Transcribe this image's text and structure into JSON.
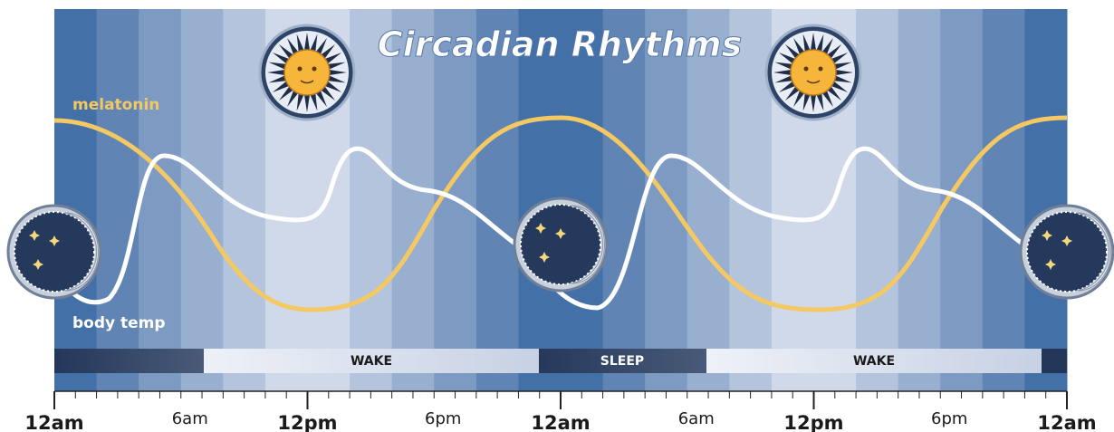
{
  "title": "Circadian Rhythms",
  "curve_labels": {
    "melatonin": "melatonin",
    "body_temp": "body temp"
  },
  "schedule": [
    "WAKE",
    "SLEEP",
    "WAKE"
  ],
  "time_labels": [
    "12am",
    "6am",
    "12pm",
    "6pm",
    "12am",
    "6am",
    "12pm",
    "6pm",
    "12am"
  ]
}
